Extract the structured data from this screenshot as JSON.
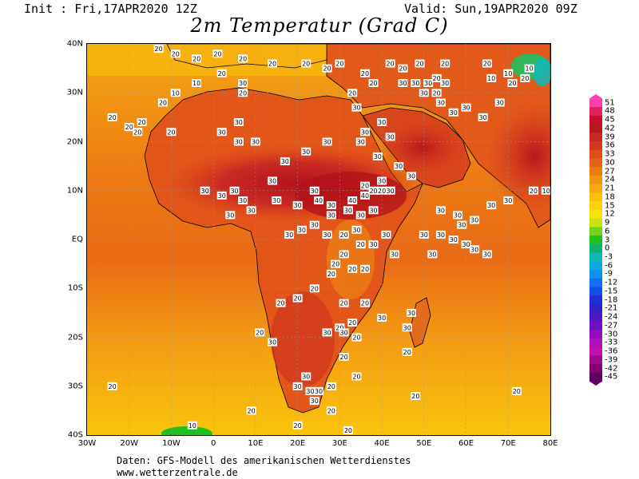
{
  "header": {
    "init": "Init : Fri,17APR2020 12Z",
    "valid": "Valid: Sun,19APR2020 09Z",
    "title": "2m Temperatur (Grad C)"
  },
  "footer": {
    "line1": "Daten: GFS-Modell des amerikanischen Wetterdienstes",
    "line2": "www.wetterzentrale.de"
  },
  "axes": {
    "lon": [
      "30W",
      "20W",
      "10W",
      "0",
      "10E",
      "20E",
      "30E",
      "40E",
      "50E",
      "60E",
      "70E",
      "80E"
    ],
    "lat": [
      "40N",
      "30N",
      "20N",
      "10N",
      "EQ",
      "10S",
      "20S",
      "30S",
      "40S"
    ]
  },
  "colorbar": {
    "labels": [
      "51",
      "48",
      "45",
      "42",
      "39",
      "36",
      "33",
      "30",
      "27",
      "24",
      "21",
      "18",
      "15",
      "12",
      "9",
      "6",
      "3",
      "0",
      "-3",
      "-6",
      "-9",
      "-12",
      "-15",
      "-18",
      "-21",
      "-24",
      "-27",
      "-30",
      "-33",
      "-36",
      "-39",
      "-42",
      "-45"
    ],
    "colors": [
      "#ff3fb0",
      "#e0205f",
      "#c4102c",
      "#b21b1b",
      "#c52a22",
      "#d23a1f",
      "#dc4e1a",
      "#e46417",
      "#ec7c12",
      "#f39410",
      "#f7aa0f",
      "#fac00c",
      "#fbd20c",
      "#f6e20c",
      "#c8e40e",
      "#72d41a",
      "#20c020",
      "#10b070",
      "#10b8b8",
      "#10a8e0",
      "#1090f0",
      "#1070f0",
      "#1050e8",
      "#2030d8",
      "#3020c8",
      "#5018c0",
      "#7010c0",
      "#9010c0",
      "#b010c0",
      "#c010b0",
      "#a00890",
      "#800070",
      "#600060"
    ]
  },
  "contour_labels": [
    {
      "t": "20",
      "lon": -13,
      "lat": 39
    },
    {
      "t": "20",
      "lon": -9,
      "lat": 38
    },
    {
      "t": "20",
      "lon": -4,
      "lat": 37
    },
    {
      "t": "20",
      "lon": 1,
      "lat": 38
    },
    {
      "t": "20",
      "lon": 7,
      "lat": 37
    },
    {
      "t": "20",
      "lon": 14,
      "lat": 36
    },
    {
      "t": "20",
      "lon": 22,
      "lat": 36
    },
    {
      "t": "20",
      "lon": 27,
      "lat": 35
    },
    {
      "t": "20",
      "lon": 30,
      "lat": 36
    },
    {
      "t": "10",
      "lon": -4,
      "lat": 32
    },
    {
      "t": "10",
      "lon": -9,
      "lat": 30
    },
    {
      "t": "20",
      "lon": -12,
      "lat": 28
    },
    {
      "t": "20",
      "lon": 2,
      "lat": 34
    },
    {
      "t": "30",
      "lon": 7,
      "lat": 32
    },
    {
      "t": "20",
      "lon": 7,
      "lat": 30
    },
    {
      "t": "20",
      "lon": -24,
      "lat": 25
    },
    {
      "t": "20",
      "lon": -20,
      "lat": 23
    },
    {
      "t": "20",
      "lon": -18,
      "lat": 22
    },
    {
      "t": "20",
      "lon": -17,
      "lat": 24
    },
    {
      "t": "20",
      "lon": -10,
      "lat": 22
    },
    {
      "t": "30",
      "lon": 2,
      "lat": 22
    },
    {
      "t": "30",
      "lon": 6,
      "lat": 24
    },
    {
      "t": "30",
      "lon": 6,
      "lat": 20
    },
    {
      "t": "20",
      "lon": 36,
      "lat": 34
    },
    {
      "t": "20",
      "lon": 38,
      "lat": 32
    },
    {
      "t": "20",
      "lon": 33,
      "lat": 30
    },
    {
      "t": "30",
      "lon": 34,
      "lat": 27
    },
    {
      "t": "30",
      "lon": 40,
      "lat": 24
    },
    {
      "t": "30",
      "lon": 42,
      "lat": 21
    },
    {
      "t": "30",
      "lon": 36,
      "lat": 22
    },
    {
      "t": "20",
      "lon": 42,
      "lat": 36
    },
    {
      "t": "20",
      "lon": 45,
      "lat": 35
    },
    {
      "t": "20",
      "lon": 49,
      "lat": 36
    },
    {
      "t": "20",
      "lon": 55,
      "lat": 36
    },
    {
      "t": "30",
      "lon": 45,
      "lat": 32
    },
    {
      "t": "30",
      "lon": 48,
      "lat": 32
    },
    {
      "t": "30",
      "lon": 51,
      "lat": 32
    },
    {
      "t": "20",
      "lon": 53,
      "lat": 33
    },
    {
      "t": "30",
      "lon": 55,
      "lat": 32
    },
    {
      "t": "20",
      "lon": 53,
      "lat": 30
    },
    {
      "t": "30",
      "lon": 50,
      "lat": 30
    },
    {
      "t": "30",
      "lon": 54,
      "lat": 28
    },
    {
      "t": "30",
      "lon": 57,
      "lat": 26
    },
    {
      "t": "30",
      "lon": 60,
      "lat": 27
    },
    {
      "t": "30",
      "lon": 64,
      "lat": 25
    },
    {
      "t": "30",
      "lon": 68,
      "lat": 28
    },
    {
      "t": "20",
      "lon": 71,
      "lat": 32
    },
    {
      "t": "10",
      "lon": 66,
      "lat": 33
    },
    {
      "t": "10",
      "lon": 70,
      "lat": 34
    },
    {
      "t": "10",
      "lon": 75,
      "lat": 35
    },
    {
      "t": "20",
      "lon": 74,
      "lat": 33
    },
    {
      "t": "20",
      "lon": 65,
      "lat": 36
    },
    {
      "t": "30",
      "lon": 10,
      "lat": 20
    },
    {
      "t": "30",
      "lon": 22,
      "lat": 18
    },
    {
      "t": "30",
      "lon": 27,
      "lat": 20
    },
    {
      "t": "30",
      "lon": 17,
      "lat": 16
    },
    {
      "t": "30",
      "lon": 14,
      "lat": 12
    },
    {
      "t": "30",
      "lon": 24,
      "lat": 10
    },
    {
      "t": "30",
      "lon": 35,
      "lat": 20
    },
    {
      "t": "30",
      "lon": 39,
      "lat": 17
    },
    {
      "t": "30",
      "lon": 44,
      "lat": 15
    },
    {
      "t": "30",
      "lon": 47,
      "lat": 13
    },
    {
      "t": "30",
      "lon": -2,
      "lat": 10
    },
    {
      "t": "30",
      "lon": 2,
      "lat": 9
    },
    {
      "t": "30",
      "lon": 5,
      "lat": 10
    },
    {
      "t": "30",
      "lon": 7,
      "lat": 8
    },
    {
      "t": "30",
      "lon": 9,
      "lat": 6
    },
    {
      "t": "30",
      "lon": 4,
      "lat": 5
    },
    {
      "t": "30",
      "lon": 15,
      "lat": 8
    },
    {
      "t": "30",
      "lon": 20,
      "lat": 7
    },
    {
      "t": "40",
      "lon": 25,
      "lat": 8
    },
    {
      "t": "40",
      "lon": 33,
      "lat": 8
    },
    {
      "t": "40",
      "lon": 36,
      "lat": 9
    },
    {
      "t": "30",
      "lon": 28,
      "lat": 7
    },
    {
      "t": "30",
      "lon": 32,
      "lat": 6
    },
    {
      "t": "30",
      "lon": 35,
      "lat": 5
    },
    {
      "t": "30",
      "lon": 38,
      "lat": 6
    },
    {
      "t": "20",
      "lon": 38,
      "lat": 10
    },
    {
      "t": "20",
      "lon": 36,
      "lat": 11
    },
    {
      "t": "20",
      "lon": 40,
      "lat": 10
    },
    {
      "t": "30",
      "lon": 40,
      "lat": 12
    },
    {
      "t": "30",
      "lon": 42,
      "lat": 10
    },
    {
      "t": "30",
      "lon": 28,
      "lat": 5
    },
    {
      "t": "30",
      "lon": 24,
      "lat": 3
    },
    {
      "t": "30",
      "lon": 21,
      "lat": 2
    },
    {
      "t": "30",
      "lon": 18,
      "lat": 1
    },
    {
      "t": "30",
      "lon": 27,
      "lat": 1
    },
    {
      "t": "20",
      "lon": 31,
      "lat": 1
    },
    {
      "t": "20",
      "lon": 35,
      "lat": -1
    },
    {
      "t": "30",
      "lon": 34,
      "lat": 2
    },
    {
      "t": "30",
      "lon": 38,
      "lat": -1
    },
    {
      "t": "30",
      "lon": 41,
      "lat": 1
    },
    {
      "t": "30",
      "lon": 43,
      "lat": -3
    },
    {
      "t": "20",
      "lon": 31,
      "lat": -3
    },
    {
      "t": "20",
      "lon": 29,
      "lat": -5
    },
    {
      "t": "20",
      "lon": 28,
      "lat": -7
    },
    {
      "t": "20",
      "lon": 33,
      "lat": -6
    },
    {
      "t": "20",
      "lon": 36,
      "lat": -6
    },
    {
      "t": "20",
      "lon": 24,
      "lat": -10
    },
    {
      "t": "20",
      "lon": 20,
      "lat": -12
    },
    {
      "t": "20",
      "lon": 16,
      "lat": -13
    },
    {
      "t": "20",
      "lon": 31,
      "lat": -13
    },
    {
      "t": "20",
      "lon": 36,
      "lat": -13
    },
    {
      "t": "20",
      "lon": 33,
      "lat": -17
    },
    {
      "t": "20",
      "lon": 30,
      "lat": -18
    },
    {
      "t": "30",
      "lon": 27,
      "lat": -19
    },
    {
      "t": "30",
      "lon": 31,
      "lat": -19
    },
    {
      "t": "20",
      "lon": 34,
      "lat": -20
    },
    {
      "t": "30",
      "lon": 40,
      "lat": -16
    },
    {
      "t": "30",
      "lon": 47,
      "lat": -15
    },
    {
      "t": "30",
      "lon": 46,
      "lat": -18
    },
    {
      "t": "20",
      "lon": 46,
      "lat": -23
    },
    {
      "t": "30",
      "lon": 14,
      "lat": -21
    },
    {
      "t": "20",
      "lon": 11,
      "lat": -19
    },
    {
      "t": "20",
      "lon": 31,
      "lat": -24
    },
    {
      "t": "30",
      "lon": 22,
      "lat": -28
    },
    {
      "t": "30",
      "lon": 20,
      "lat": -30
    },
    {
      "t": "30",
      "lon": 23,
      "lat": -31
    },
    {
      "t": "30",
      "lon": 25,
      "lat": -31
    },
    {
      "t": "30",
      "lon": 24,
      "lat": -33
    },
    {
      "t": "20",
      "lon": 28,
      "lat": -30
    },
    {
      "t": "20",
      "lon": 34,
      "lat": -28
    },
    {
      "t": "20",
      "lon": 28,
      "lat": -35
    },
    {
      "t": "20",
      "lon": 20,
      "lat": -38
    },
    {
      "t": "20",
      "lon": -24,
      "lat": -30
    },
    {
      "t": "20",
      "lon": 9,
      "lat": -35
    },
    {
      "t": "20",
      "lon": 48,
      "lat": -32
    },
    {
      "t": "20",
      "lon": 72,
      "lat": -31
    },
    {
      "t": "20",
      "lon": 32,
      "lat": -39
    },
    {
      "t": "10",
      "lon": -5,
      "lat": -38
    },
    {
      "t": "30",
      "lon": 54,
      "lat": 6
    },
    {
      "t": "30",
      "lon": 58,
      "lat": 5
    },
    {
      "t": "30",
      "lon": 59,
      "lat": 3
    },
    {
      "t": "30",
      "lon": 62,
      "lat": 4
    },
    {
      "t": "30",
      "lon": 66,
      "lat": 7
    },
    {
      "t": "30",
      "lon": 70,
      "lat": 8
    },
    {
      "t": "20",
      "lon": 76,
      "lat": 10
    },
    {
      "t": "10",
      "lon": 79,
      "lat": 10
    },
    {
      "t": "30",
      "lon": 54,
      "lat": 1
    },
    {
      "t": "30",
      "lon": 57,
      "lat": 0
    },
    {
      "t": "30",
      "lon": 60,
      "lat": -1
    },
    {
      "t": "30",
      "lon": 62,
      "lat": -2
    },
    {
      "t": "30",
      "lon": 65,
      "lat": -3
    },
    {
      "t": "30",
      "lon": 50,
      "lat": 1
    },
    {
      "t": "30",
      "lon": 52,
      "lat": -3
    }
  ]
}
